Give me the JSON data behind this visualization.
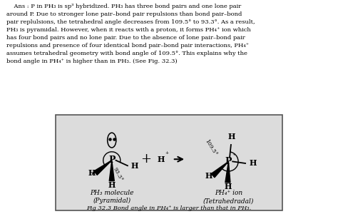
{
  "background_color": "#dcdcdc",
  "page_bg": "#ffffff",
  "text_color": "#000000",
  "ans_text_lines": [
    "    Ans : P in PH₃ is sp³ hybridized. PH₃ has three bond pairs and one lone pair",
    "around P. Due to stronger lone pair–bond pair repulsions than bond pair–bond",
    "pair replulsions, the tetrahedral angle decreases from 109.5° to 93.3°. As a result,",
    "PH₃ is pyramidal. However, when it reacts with a proton, it forms PH₄⁺ ion which",
    "has four bond pairs and no lone pair. Due to the absence of lone pair–bond pair",
    "repulsions and presence of four identical bond pair–bond pair interactions, PH₄⁺",
    "assumes tetrahedral geometry with bond angle of 109.5°. This explains why the",
    "bond angle in PH₄⁺ is higher than in PH₃. (See Fig. 32.3)"
  ],
  "fig_caption": "Fig 32.3 Bond angle in PH₄⁺ is larger than that in PH₃.",
  "label_ph3": "PH₃ molecule",
  "label_ph3_shape": "(Pyramidal)",
  "label_ph4": "PH₄⁺ ion",
  "label_ph4_shape": "(Tetrahedradal)",
  "angle_ph3": "93.3°",
  "angle_ph4": "109.5°"
}
